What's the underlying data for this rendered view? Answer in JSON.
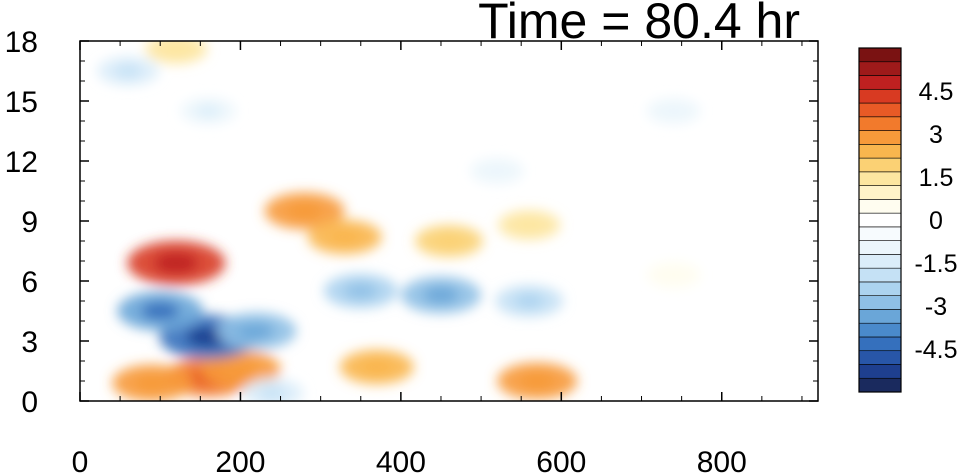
{
  "chart_data": {
    "type": "heatmap",
    "title": "Time = 80.4 hr",
    "xlabel": "",
    "ylabel": "",
    "xlim": [
      0,
      920
    ],
    "ylim": [
      0,
      18
    ],
    "x_ticks": [
      0,
      200,
      400,
      600,
      800
    ],
    "x_tick_labels": [
      "0",
      "200",
      "400",
      "600",
      "800"
    ],
    "y_ticks": [
      0,
      3,
      6,
      9,
      12,
      15,
      18
    ],
    "y_tick_labels": [
      "0",
      "3",
      "6",
      "9",
      "12",
      "15",
      "18"
    ],
    "colorbar": {
      "min": -6,
      "max": 6,
      "step": 0.5,
      "label_values": [
        4.5,
        3,
        1.5,
        0,
        -1.5,
        -3,
        -4.5
      ],
      "labels": [
        "4.5",
        "3",
        "1.5",
        "0",
        "-1.5",
        "-3",
        "-4.5"
      ],
      "colors": [
        "#1a2a5e",
        "#1e3f8f",
        "#2856a8",
        "#3570bd",
        "#4a8acb",
        "#6aa6d8",
        "#8fc0e6",
        "#acd3ef",
        "#c5e1f5",
        "#dbedf9",
        "#ecf6fc",
        "#f7fbfe",
        "#ffffff",
        "#fffdf0",
        "#fff3c9",
        "#fde6a0",
        "#fbd174",
        "#f9b64e",
        "#f79a3a",
        "#f27a2c",
        "#e85a26",
        "#d83a22",
        "#bf2020",
        "#9e1a1a",
        "#7a1212"
      ]
    },
    "features": [
      {
        "x": 120,
        "y": 6.9,
        "value": 4.5
      },
      {
        "x": 160,
        "y": 1.2,
        "value": 3.5
      },
      {
        "x": 90,
        "y": 0.9,
        "value": 3
      },
      {
        "x": 200,
        "y": 1.6,
        "value": 3
      },
      {
        "x": 280,
        "y": 9.5,
        "value": 3
      },
      {
        "x": 330,
        "y": 8.2,
        "value": 2.5
      },
      {
        "x": 460,
        "y": 8.0,
        "value": 2
      },
      {
        "x": 560,
        "y": 8.8,
        "value": 1.5
      },
      {
        "x": 370,
        "y": 1.7,
        "value": 2.5
      },
      {
        "x": 570,
        "y": 1.0,
        "value": 3
      },
      {
        "x": 740,
        "y": 6.3,
        "value": 0.8
      },
      {
        "x": 120,
        "y": 17.6,
        "value": 1.5
      },
      {
        "x": 160,
        "y": 3.2,
        "value": -4.5
      },
      {
        "x": 100,
        "y": 4.5,
        "value": -3.5
      },
      {
        "x": 220,
        "y": 3.5,
        "value": -3
      },
      {
        "x": 450,
        "y": 5.3,
        "value": -3
      },
      {
        "x": 350,
        "y": 5.5,
        "value": -2.5
      },
      {
        "x": 560,
        "y": 5.0,
        "value": -2
      },
      {
        "x": 240,
        "y": 0.4,
        "value": -1.5
      },
      {
        "x": 60,
        "y": 16.5,
        "value": -1.5
      },
      {
        "x": 160,
        "y": 14.5,
        "value": -1
      },
      {
        "x": 520,
        "y": 11.5,
        "value": -0.8
      },
      {
        "x": 740,
        "y": 14.5,
        "value": -0.8
      }
    ]
  }
}
